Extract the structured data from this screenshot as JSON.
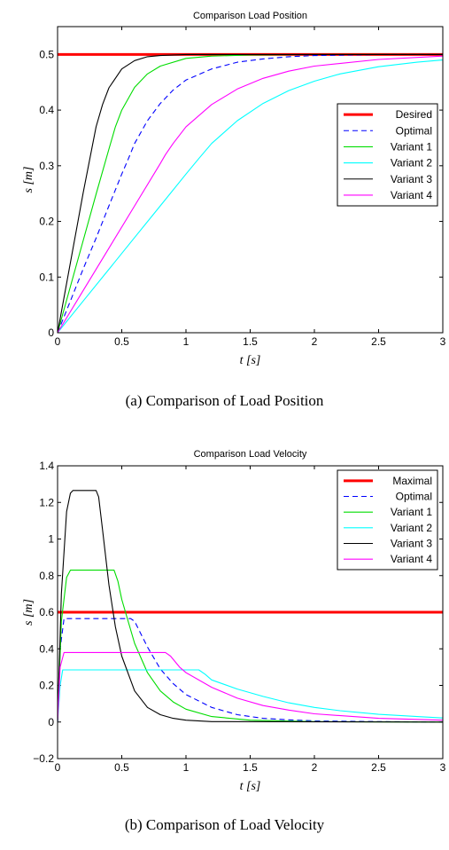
{
  "chart_data": [
    {
      "type": "line",
      "title": "Comparison Load Position",
      "xlabel_sym": "t",
      "xlabel_unit": "[s]",
      "ylabel_sym": "s",
      "ylabel_unit": "[m]",
      "xlim": [
        0,
        3
      ],
      "ylim": [
        0,
        0.55
      ],
      "xticks": [
        "0",
        "0.5",
        "1",
        "1.5",
        "2",
        "2.5",
        "3"
      ],
      "yticks": [
        "0",
        "0.1",
        "0.2",
        "0.3",
        "0.4",
        "0.5"
      ],
      "legend_position": "center-right",
      "series": [
        {
          "name": "Desired",
          "color": "#ff0000",
          "style": "thick",
          "x": [
            0,
            3
          ],
          "y": [
            0.5,
            0.5
          ]
        },
        {
          "name": "Optimal",
          "color": "#0000ff",
          "style": "dashed",
          "x": [
            0,
            0.1,
            0.2,
            0.3,
            0.4,
            0.5,
            0.55,
            0.6,
            0.7,
            0.8,
            0.9,
            1.0,
            1.2,
            1.4,
            1.6,
            1.8,
            2.0,
            2.5,
            3.0
          ],
          "y": [
            0,
            0.057,
            0.115,
            0.17,
            0.228,
            0.285,
            0.312,
            0.34,
            0.381,
            0.412,
            0.436,
            0.454,
            0.474,
            0.486,
            0.492,
            0.496,
            0.498,
            0.5,
            0.5
          ]
        },
        {
          "name": "Variant 1",
          "color": "#00dd00",
          "style": "solid",
          "x": [
            0,
            0.1,
            0.2,
            0.3,
            0.4,
            0.45,
            0.5,
            0.6,
            0.7,
            0.8,
            1.0,
            1.2,
            1.5,
            2.0,
            3.0
          ],
          "y": [
            0,
            0.083,
            0.166,
            0.249,
            0.33,
            0.37,
            0.4,
            0.441,
            0.465,
            0.479,
            0.493,
            0.497,
            0.499,
            0.5,
            0.5
          ]
        },
        {
          "name": "Variant 2",
          "color": "#00ffff",
          "style": "solid",
          "x": [
            0,
            0.2,
            0.4,
            0.6,
            0.8,
            1.0,
            1.1,
            1.2,
            1.4,
            1.6,
            1.8,
            2.0,
            2.2,
            2.5,
            2.8,
            3.0
          ],
          "y": [
            0,
            0.057,
            0.114,
            0.171,
            0.228,
            0.285,
            0.313,
            0.34,
            0.381,
            0.412,
            0.435,
            0.452,
            0.465,
            0.478,
            0.486,
            0.49
          ]
        },
        {
          "name": "Variant 3",
          "color": "#000000",
          "style": "solid",
          "x": [
            0,
            0.1,
            0.2,
            0.3,
            0.35,
            0.4,
            0.5,
            0.6,
            0.7,
            0.8,
            1.0,
            1.5,
            3.0
          ],
          "y": [
            0,
            0.126,
            0.252,
            0.37,
            0.41,
            0.44,
            0.474,
            0.489,
            0.496,
            0.498,
            0.5,
            0.5,
            0.5
          ]
        },
        {
          "name": "Variant 4",
          "color": "#ff00ff",
          "style": "solid",
          "x": [
            0,
            0.2,
            0.4,
            0.6,
            0.8,
            0.84,
            0.9,
            1.0,
            1.2,
            1.4,
            1.6,
            1.8,
            2.0,
            2.5,
            3.0
          ],
          "y": [
            0,
            0.076,
            0.152,
            0.228,
            0.304,
            0.32,
            0.34,
            0.37,
            0.41,
            0.438,
            0.457,
            0.47,
            0.479,
            0.491,
            0.497
          ]
        }
      ]
    },
    {
      "type": "line",
      "title": "Comparison Load Velocity",
      "xlabel_sym": "t",
      "xlabel_unit": "[s]",
      "ylabel_sym": "s",
      "ylabel_unit": "[m]",
      "xlim": [
        0,
        3
      ],
      "ylim": [
        -0.2,
        1.4
      ],
      "xticks": [
        "0",
        "0.5",
        "1",
        "1.5",
        "2",
        "2.5",
        "3"
      ],
      "yticks": [
        "−0.2",
        "0",
        "0.2",
        "0.4",
        "0.6",
        "0.8",
        "1",
        "1.2",
        "1.4"
      ],
      "legend_position": "top-right",
      "series": [
        {
          "name": "Maximal",
          "color": "#ff0000",
          "style": "thick",
          "x": [
            0,
            3
          ],
          "y": [
            0.6,
            0.6
          ]
        },
        {
          "name": "Optimal",
          "color": "#0000ff",
          "style": "dashed",
          "x": [
            0,
            0.02,
            0.05,
            0.57,
            0.6,
            0.7,
            0.8,
            0.9,
            1.0,
            1.2,
            1.4,
            1.6,
            1.8,
            2.0,
            2.5,
            3.0
          ],
          "y": [
            0,
            0.4,
            0.565,
            0.565,
            0.55,
            0.41,
            0.29,
            0.21,
            0.15,
            0.08,
            0.04,
            0.02,
            0.012,
            0.006,
            0.002,
            0
          ]
        },
        {
          "name": "Variant 1",
          "color": "#00dd00",
          "style": "solid",
          "x": [
            0,
            0.03,
            0.07,
            0.1,
            0.44,
            0.47,
            0.5,
            0.6,
            0.7,
            0.8,
            0.9,
            1.0,
            1.2,
            1.5,
            2.0,
            3.0
          ],
          "y": [
            0,
            0.55,
            0.79,
            0.83,
            0.83,
            0.77,
            0.67,
            0.43,
            0.27,
            0.17,
            0.11,
            0.07,
            0.03,
            0.01,
            0.002,
            0
          ]
        },
        {
          "name": "Variant 2",
          "color": "#00ffff",
          "style": "solid",
          "x": [
            0,
            0.02,
            0.04,
            1.1,
            1.15,
            1.2,
            1.4,
            1.6,
            1.8,
            2.0,
            2.2,
            2.5,
            2.8,
            3.0
          ],
          "y": [
            0,
            0.2,
            0.285,
            0.285,
            0.26,
            0.23,
            0.18,
            0.14,
            0.105,
            0.08,
            0.062,
            0.042,
            0.03,
            0.022
          ]
        },
        {
          "name": "Variant 3",
          "color": "#000000",
          "style": "solid",
          "x": [
            0,
            0.03,
            0.07,
            0.1,
            0.12,
            0.3,
            0.32,
            0.35,
            0.4,
            0.45,
            0.5,
            0.6,
            0.7,
            0.8,
            0.9,
            1.0,
            1.2,
            3.0
          ],
          "y": [
            0,
            0.7,
            1.15,
            1.25,
            1.265,
            1.265,
            1.23,
            1.05,
            0.75,
            0.52,
            0.36,
            0.17,
            0.08,
            0.04,
            0.02,
            0.01,
            0.002,
            0
          ]
        },
        {
          "name": "Variant 4",
          "color": "#ff00ff",
          "style": "solid",
          "x": [
            0,
            0.02,
            0.05,
            0.84,
            0.88,
            0.95,
            1.0,
            1.2,
            1.4,
            1.6,
            1.8,
            2.0,
            2.5,
            3.0
          ],
          "y": [
            0,
            0.3,
            0.38,
            0.38,
            0.36,
            0.3,
            0.27,
            0.19,
            0.13,
            0.09,
            0.065,
            0.045,
            0.02,
            0.01
          ]
        }
      ]
    }
  ],
  "captions": [
    "(a)  Comparison of Load Position",
    "(b)  Comparison of Load Velocity"
  ]
}
